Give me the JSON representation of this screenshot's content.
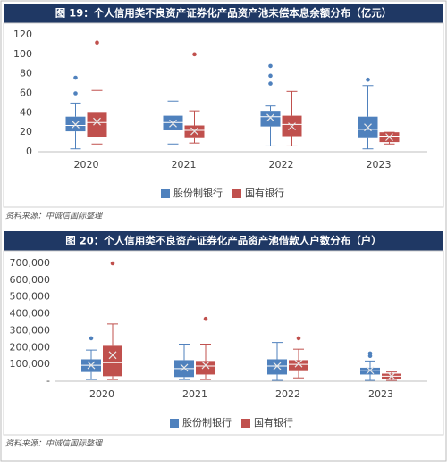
{
  "chart_data": [
    {
      "type": "box",
      "title": "图 19：个人信用类不良资产证券化产品资产池未偿本息余额分布（亿元）",
      "source": "资料来源：中诚信国际整理",
      "categories": [
        "2020",
        "2021",
        "2022",
        "2023"
      ],
      "ylim": [
        0,
        120
      ],
      "yticks": [
        0,
        20,
        40,
        60,
        80,
        100,
        120
      ],
      "grid": false,
      "series": [
        {
          "name": "股份制银行",
          "color": "#4f81bd",
          "min": [
            3,
            8,
            6,
            3
          ],
          "q1": [
            21,
            22,
            26,
            14
          ],
          "median": [
            27,
            30,
            36,
            23
          ],
          "q3": [
            36,
            37,
            42,
            36
          ],
          "max": [
            50,
            52,
            47,
            68
          ],
          "mean": [
            28,
            29,
            35,
            25
          ],
          "outliers": [
            [
              76,
              60
            ],
            [],
            [
              88,
              78,
              70
            ],
            [
              74
            ]
          ]
        },
        {
          "name": "国有银行",
          "color": "#c0504d",
          "min": [
            8,
            9,
            6,
            8
          ],
          "q1": [
            15,
            14,
            16,
            10
          ],
          "median": [
            30,
            22,
            28,
            16
          ],
          "q3": [
            40,
            27,
            37,
            20
          ],
          "max": [
            63,
            42,
            62,
            20
          ],
          "mean": [
            31,
            21,
            26,
            15
          ],
          "outliers": [
            [
              112
            ],
            [
              100
            ],
            [],
            []
          ]
        }
      ]
    },
    {
      "type": "box",
      "title": "图 20：个人信用类不良资产证券化产品资产池借款人户数分布（户）",
      "source": "资料来源：中诚信国际整理",
      "categories": [
        "2020",
        "2021",
        "2022",
        "2023"
      ],
      "ylim": [
        0,
        700000
      ],
      "yticks": [
        {
          "value": 0,
          "label": "-"
        },
        {
          "value": 100000,
          "label": "100,000"
        },
        {
          "value": 200000,
          "label": "200,000"
        },
        {
          "value": 300000,
          "label": "300,000"
        },
        {
          "value": 400000,
          "label": "400,000"
        },
        {
          "value": 500000,
          "label": "500,000"
        },
        {
          "value": 600000,
          "label": "600,000"
        },
        {
          "value": 700000,
          "label": "700,000"
        }
      ],
      "grid": false,
      "series": [
        {
          "name": "股份制银行",
          "color": "#4f81bd",
          "min": [
            10000,
            10000,
            5000,
            5000
          ],
          "q1": [
            55000,
            25000,
            40000,
            40000
          ],
          "median": [
            95000,
            75000,
            90000,
            65000
          ],
          "q3": [
            130000,
            125000,
            130000,
            80000
          ],
          "max": [
            185000,
            220000,
            230000,
            120000
          ],
          "mean": [
            95000,
            80000,
            90000,
            65000
          ],
          "outliers": [
            [
              255000
            ],
            [],
            [],
            [
              150000,
              165000
            ]
          ]
        },
        {
          "name": "国有银行",
          "color": "#c0504d",
          "min": [
            10000,
            10000,
            20000,
            5000
          ],
          "q1": [
            30000,
            40000,
            60000,
            15000
          ],
          "median": [
            110000,
            90000,
            100000,
            30000
          ],
          "q3": [
            210000,
            120000,
            125000,
            45000
          ],
          "max": [
            340000,
            220000,
            190000,
            55000
          ],
          "mean": [
            155000,
            95000,
            105000,
            30000
          ],
          "outliers": [
            [
              700000
            ],
            [
              370000
            ],
            [
              255000
            ],
            []
          ]
        }
      ]
    }
  ]
}
